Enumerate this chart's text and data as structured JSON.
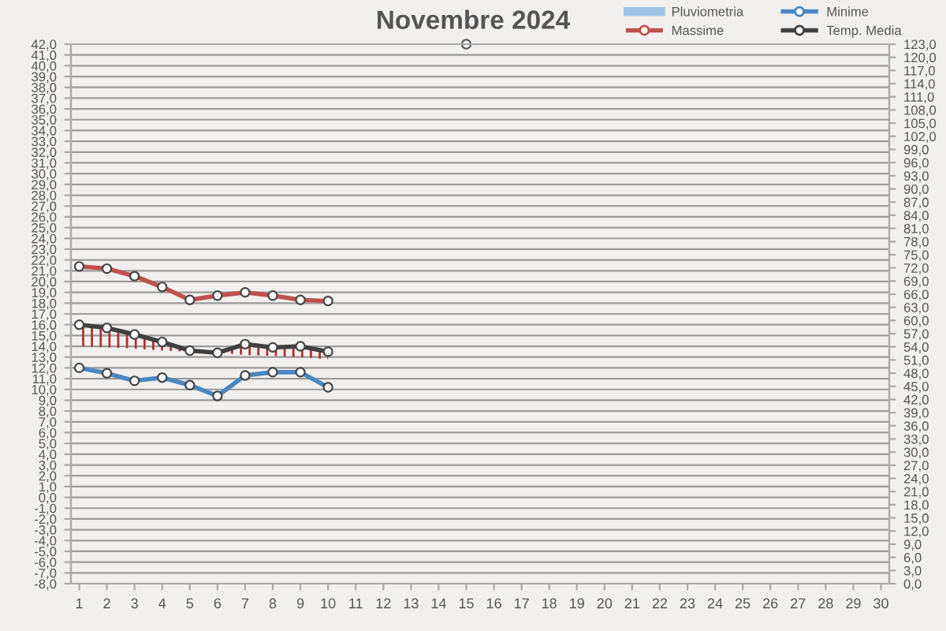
{
  "chart_data": {
    "type": "line",
    "title": "Novembre 2024",
    "categories": [
      "1",
      "2",
      "3",
      "4",
      "5",
      "6",
      "7",
      "8",
      "9",
      "10",
      "11",
      "12",
      "13",
      "14",
      "15",
      "16",
      "17",
      "18",
      "19",
      "20",
      "21",
      "22",
      "23",
      "24",
      "25",
      "26",
      "27",
      "28",
      "29",
      "30"
    ],
    "series": [
      {
        "name": "Pluviometria",
        "type": "bar",
        "color": "#9dc3e6",
        "values": [
          null,
          null,
          null,
          null,
          null,
          null,
          null,
          null,
          null,
          null,
          null,
          null,
          null,
          null,
          null,
          null,
          null,
          null,
          null,
          null,
          null,
          null,
          null,
          null,
          null,
          null,
          null,
          null,
          null,
          null
        ]
      },
      {
        "name": "Massime",
        "color": "#c0504d",
        "values": [
          21.4,
          21.2,
          20.5,
          19.5,
          18.3,
          18.7,
          19.0,
          18.7,
          18.3,
          18.2,
          null,
          null,
          null,
          null,
          null,
          null,
          null,
          null,
          null,
          null,
          null,
          null,
          null,
          null,
          null,
          null,
          null,
          null,
          null,
          null
        ]
      },
      {
        "name": "Minime",
        "color": "#4a86c0",
        "values": [
          12.0,
          11.5,
          10.8,
          11.1,
          10.4,
          9.4,
          11.3,
          11.6,
          11.6,
          10.2,
          null,
          null,
          null,
          null,
          null,
          null,
          null,
          null,
          null,
          null,
          null,
          null,
          null,
          null,
          null,
          null,
          null,
          null,
          null,
          null
        ]
      },
      {
        "name": "Temp. Media",
        "color": "#404040",
        "values": [
          16.0,
          15.7,
          15.1,
          14.4,
          13.6,
          13.4,
          14.2,
          13.9,
          14.0,
          13.5,
          null,
          null,
          null,
          null,
          null,
          null,
          null,
          null,
          null,
          null,
          null,
          null,
          null,
          null,
          null,
          null,
          null,
          null,
          null,
          null
        ],
        "lower": [
          14.0,
          13.9,
          13.8,
          13.6,
          13.5,
          13.4,
          13.2,
          13.1,
          13.0,
          12.8,
          null,
          null,
          null,
          null,
          null,
          null,
          null,
          null,
          null,
          null,
          null,
          null,
          null,
          null,
          null,
          null,
          null,
          null,
          null,
          null
        ],
        "upper": [
          16.0,
          15.7,
          15.1,
          14.4,
          13.6,
          13.4,
          14.2,
          13.9,
          14.0,
          13.5,
          null,
          null,
          null,
          null,
          null,
          null,
          null,
          null,
          null,
          null,
          null,
          null,
          null,
          null,
          null,
          null,
          null,
          null,
          null,
          null
        ]
      },
      {
        "type": "scatter",
        "color": "#555555",
        "values": [
          null,
          null,
          null,
          null,
          null,
          null,
          null,
          null,
          null,
          null,
          null,
          null,
          null,
          null,
          42.0,
          null,
          null,
          null,
          null,
          null,
          null,
          null,
          null,
          null,
          null,
          null,
          null,
          null,
          null,
          null
        ]
      }
    ],
    "ylim": [
      -8,
      42
    ],
    "yticks": [
      {
        "value": -8,
        "label": "-8,0"
      },
      {
        "value": -7,
        "label": "-7,0"
      },
      {
        "value": -6,
        "label": "-6,0"
      },
      {
        "value": -5,
        "label": "-5,0"
      },
      {
        "value": -4,
        "label": "-4,0"
      },
      {
        "value": -3,
        "label": "-3,0"
      },
      {
        "value": -2,
        "label": "-2,0"
      },
      {
        "value": -1,
        "label": "-1,0"
      },
      {
        "value": 0,
        "label": "0,0"
      },
      {
        "value": 1,
        "label": "1,0"
      },
      {
        "value": 2,
        "label": "2,0"
      },
      {
        "value": 3,
        "label": "3,0"
      },
      {
        "value": 4,
        "label": "4,0"
      },
      {
        "value": 5,
        "label": "5,0"
      },
      {
        "value": 6,
        "label": "6,0"
      },
      {
        "value": 7,
        "label": "7,0"
      },
      {
        "value": 8,
        "label": "8,0"
      },
      {
        "value": 9,
        "label": "9,0"
      },
      {
        "value": 10,
        "label": "10,0"
      },
      {
        "value": 11,
        "label": "11,0"
      },
      {
        "value": 12,
        "label": "12,0"
      },
      {
        "value": 13,
        "label": "13,0"
      },
      {
        "value": 14,
        "label": "14,0"
      },
      {
        "value": 15,
        "label": "15,0"
      },
      {
        "value": 16,
        "label": "16,0"
      },
      {
        "value": 17,
        "label": "17,0"
      },
      {
        "value": 18,
        "label": "18,0"
      },
      {
        "value": 19,
        "label": "19,0"
      },
      {
        "value": 20,
        "label": "20,0"
      },
      {
        "value": 21,
        "label": "21,0"
      },
      {
        "value": 22,
        "label": "22,0"
      },
      {
        "value": 23,
        "label": "23,0"
      },
      {
        "value": 24,
        "label": "24,0"
      },
      {
        "value": 25,
        "label": "25,0"
      },
      {
        "value": 26,
        "label": "26,0"
      },
      {
        "value": 27,
        "label": "27,0"
      },
      {
        "value": 28,
        "label": "28,0"
      },
      {
        "value": 29,
        "label": "29,0"
      },
      {
        "value": 30,
        "label": "30,0"
      },
      {
        "value": 31,
        "label": "31,0"
      },
      {
        "value": 32,
        "label": "32,0"
      },
      {
        "value": 33,
        "label": "33,0"
      },
      {
        "value": 34,
        "label": "34,0"
      },
      {
        "value": 35,
        "label": "35,0"
      },
      {
        "value": 36,
        "label": "36,0"
      },
      {
        "value": 37,
        "label": "37,0"
      },
      {
        "value": 38,
        "label": "38,0"
      },
      {
        "value": 39,
        "label": "39,0"
      },
      {
        "value": 40,
        "label": "40,0"
      },
      {
        "value": 41,
        "label": "41,0"
      },
      {
        "value": 42,
        "label": "42,0"
      }
    ],
    "y2lim": [
      0,
      123
    ],
    "y2ticks": [
      {
        "value": 0,
        "label": "0,0"
      },
      {
        "value": 3,
        "label": "3,0"
      },
      {
        "value": 6,
        "label": "6,0"
      },
      {
        "value": 9,
        "label": "9,0"
      },
      {
        "value": 12,
        "label": "12,0"
      },
      {
        "value": 15,
        "label": "15,0"
      },
      {
        "value": 18,
        "label": "18,0"
      },
      {
        "value": 21,
        "label": "21,0"
      },
      {
        "value": 24,
        "label": "24,0"
      },
      {
        "value": 27,
        "label": "27,0"
      },
      {
        "value": 30,
        "label": "30,0"
      },
      {
        "value": 33,
        "label": "33,0"
      },
      {
        "value": 36,
        "label": "36,0"
      },
      {
        "value": 39,
        "label": "39,0"
      },
      {
        "value": 42,
        "label": "42,0"
      },
      {
        "value": 45,
        "label": "45,0"
      },
      {
        "value": 48,
        "label": "48,0"
      },
      {
        "value": 51,
        "label": "51,0"
      },
      {
        "value": 54,
        "label": "54,0"
      },
      {
        "value": 57,
        "label": "57,0"
      },
      {
        "value": 60,
        "label": "60,0"
      },
      {
        "value": 63,
        "label": "63,0"
      },
      {
        "value": 66,
        "label": "66,0"
      },
      {
        "value": 69,
        "label": "69,0"
      },
      {
        "value": 72,
        "label": "72,0"
      },
      {
        "value": 75,
        "label": "75,0"
      },
      {
        "value": 78,
        "label": "78,0"
      },
      {
        "value": 81,
        "label": "81,0"
      },
      {
        "value": 84,
        "label": "84,0"
      },
      {
        "value": 87,
        "label": "87,0"
      },
      {
        "value": 90,
        "label": "90,0"
      },
      {
        "value": 93,
        "label": "93,0"
      },
      {
        "value": 96,
        "label": "96,0"
      },
      {
        "value": 99,
        "label": "99,0"
      },
      {
        "value": 102,
        "label": "102,0"
      },
      {
        "value": 105,
        "label": "105,0"
      },
      {
        "value": 108,
        "label": "108,0"
      },
      {
        "value": 111,
        "label": "111,0"
      },
      {
        "value": 114,
        "label": "114,0"
      },
      {
        "value": 117,
        "label": "117,0"
      },
      {
        "value": 120,
        "label": "120,0"
      },
      {
        "value": 123,
        "label": "123,0"
      }
    ],
    "grid": "y",
    "legend": "top right",
    "marker": "circle",
    "line_style": "solid"
  }
}
